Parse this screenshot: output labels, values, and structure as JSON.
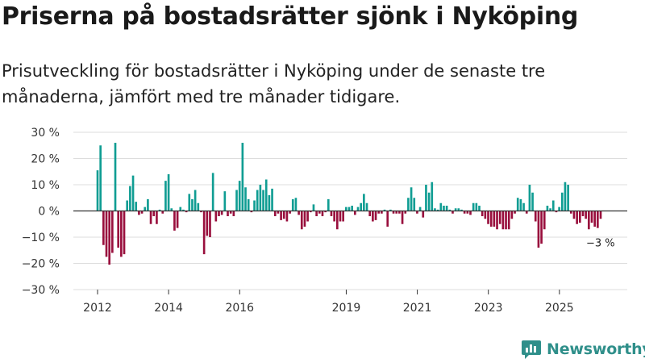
{
  "title": "Priserna på bostadsrätter sjönk i Nyköping",
  "subtitle": "Prisutveckling för bostadsrätter i Nyköping under de senaste tre månaderna, jämfört med tre månader tidigare.",
  "brand": "Newsworthy",
  "colors": {
    "positive": "#109d93",
    "negative": "#990f3d",
    "grid": "#dddddd",
    "axis": "#333333",
    "text": "#333333"
  },
  "chart_data": {
    "type": "bar",
    "title": "Priserna på bostadsrätter sjönk i Nyköping",
    "xlabel": "",
    "ylabel": "",
    "ylim": [
      -30,
      30
    ],
    "yticks": [
      30,
      20,
      10,
      0,
      -10,
      -20,
      -30
    ],
    "ytick_labels": [
      "30 %",
      "20 %",
      "10 %",
      "0 %",
      "−10 %",
      "−20 %",
      "−30 %"
    ],
    "xticks": [
      {
        "label": "2012",
        "t": 2012.0
      },
      {
        "label": "2014",
        "t": 2014.0
      },
      {
        "label": "2016",
        "t": 2016.0
      },
      {
        "label": "2019",
        "t": 2019.0
      },
      {
        "label": "2021",
        "t": 2021.0
      },
      {
        "label": "2023",
        "t": 2023.0
      },
      {
        "label": "2025",
        "t": 2025.0
      }
    ],
    "x_start": 2012.0,
    "x_end": 2026.45,
    "step": 0.0833,
    "annotation": {
      "text": "−3 %",
      "value": -3
    },
    "values": [
      15.5,
      25,
      -13,
      -17.5,
      -20.5,
      -16,
      26,
      -14,
      -17.5,
      -16.5,
      4,
      9.5,
      13.5,
      3.5,
      -1.5,
      -1,
      1.5,
      4.5,
      -5,
      -2,
      -5,
      0.5,
      -1,
      11.5,
      14,
      1,
      -7.5,
      -6.5,
      1.5,
      0.5,
      -0.5,
      6.5,
      4.5,
      8,
      3,
      -0.5,
      -16.5,
      -9.5,
      -10,
      14.5,
      -4,
      -2,
      -1.5,
      7.5,
      -2,
      -1,
      -2,
      8,
      11.5,
      26,
      9,
      4.5,
      -0.5,
      4,
      8,
      10,
      8,
      12,
      6,
      8.5,
      -2,
      -1,
      -3.5,
      -3,
      -4,
      -1,
      4.5,
      5,
      -1.5,
      -7,
      -6,
      -4,
      -0.5,
      2.5,
      -2,
      -1,
      -2,
      -0.5,
      4.5,
      -2,
      -4,
      -7,
      -4,
      -4,
      1.5,
      1.5,
      2,
      -1.5,
      1.5,
      3,
      6.5,
      3,
      -2,
      -4,
      -3.5,
      -1,
      -1,
      0.5,
      -6,
      0.5,
      -1,
      -1,
      -1,
      -5,
      -1,
      5,
      9,
      5,
      -1,
      1.5,
      -2.5,
      10,
      7,
      11,
      1,
      0.5,
      3,
      2,
      2,
      0.5,
      -1,
      1,
      1,
      0.5,
      -1,
      -1,
      -1.5,
      3,
      3,
      2,
      -2,
      -3,
      -5,
      -6,
      -6,
      -7,
      -5,
      -7,
      -7,
      -7,
      -3,
      -1,
      5,
      4.5,
      3,
      -1,
      10,
      7,
      -4,
      -14,
      -12.5,
      -7,
      2,
      1,
      4,
      -0.5,
      1.5,
      7,
      11,
      10,
      -1,
      -3,
      -5,
      -4.5,
      -2,
      -3,
      -7,
      -4.5,
      -6,
      -6.5,
      -3
    ]
  }
}
